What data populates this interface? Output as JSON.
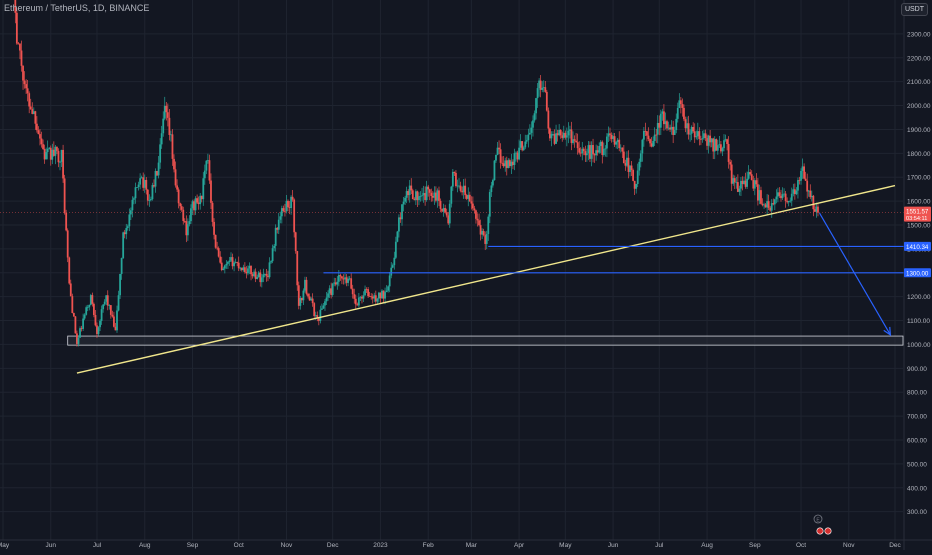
{
  "header": {
    "symbol_title": "Ethereum / TetherUS, 1D, BINANCE",
    "currency": "USDT"
  },
  "colors": {
    "background": "#131722",
    "up_candle": "#26a69a",
    "down_candle": "#ef5350",
    "trendline": "#f0e68c",
    "support_line": "#2962ff",
    "zone_fill": "#2a2e39",
    "zone_border": "#d1d4dc",
    "axis_text": "#b2b5be"
  },
  "chart_data": {
    "type": "candlestick",
    "title": "Ethereum / TetherUS, 1D, BINANCE",
    "y_axis": {
      "unit": "USDT",
      "ylim": [
        265,
        2400
      ],
      "ticks": [
        300,
        400,
        500,
        600,
        700,
        800,
        900,
        1000,
        1100,
        1200,
        1300,
        1400,
        1500,
        1600,
        1700,
        1800,
        1900,
        2000,
        2100,
        2200,
        2300
      ],
      "tick_labels": [
        "300.00",
        "400.00",
        "500.00",
        "600.00",
        "700.00",
        "800.00",
        "900.00",
        "1000.00",
        "1100.00",
        "1200.00",
        "1300.00",
        "1400.00",
        "1500.00",
        "1600.00",
        "1700.00",
        "1800.00",
        "1900.00",
        "2000.00",
        "2100.00",
        "2200.00",
        "2300.00"
      ]
    },
    "x_axis": {
      "ticks": [
        {
          "label": "May",
          "date": "2022-05-01"
        },
        {
          "label": "Jun",
          "date": "2022-06-01"
        },
        {
          "label": "Jul",
          "date": "2022-07-01"
        },
        {
          "label": "Aug",
          "date": "2022-08-01"
        },
        {
          "label": "Sep",
          "date": "2022-09-01"
        },
        {
          "label": "Oct",
          "date": "2022-10-01"
        },
        {
          "label": "Nov",
          "date": "2022-11-01"
        },
        {
          "label": "Dec",
          "date": "2022-12-01"
        },
        {
          "label": "2023",
          "date": "2023-01-01"
        },
        {
          "label": "Feb",
          "date": "2023-02-01"
        },
        {
          "label": "Mar",
          "date": "2023-03-01"
        },
        {
          "label": "Apr",
          "date": "2023-04-01"
        },
        {
          "label": "May",
          "date": "2023-05-01"
        },
        {
          "label": "Jun",
          "date": "2023-06-01"
        },
        {
          "label": "Jul",
          "date": "2023-07-01"
        },
        {
          "label": "Aug",
          "date": "2023-08-01"
        },
        {
          "label": "Sep",
          "date": "2023-09-01"
        },
        {
          "label": "Oct",
          "date": "2023-10-01"
        },
        {
          "label": "Nov",
          "date": "2023-11-01"
        },
        {
          "label": "Dec",
          "date": "2023-12-01"
        }
      ]
    },
    "price_path": [
      [
        "2022-05-05",
        2900
      ],
      [
        "2022-05-10",
        2300
      ],
      [
        "2022-05-16",
        2050
      ],
      [
        "2022-05-22",
        1950
      ],
      [
        "2022-05-28",
        1790
      ],
      [
        "2022-06-03",
        1800
      ],
      [
        "2022-06-08",
        1790
      ],
      [
        "2022-06-13",
        1250
      ],
      [
        "2022-06-18",
        1000
      ],
      [
        "2022-06-22",
        1100
      ],
      [
        "2022-06-27",
        1200
      ],
      [
        "2022-07-01",
        1060
      ],
      [
        "2022-07-07",
        1200
      ],
      [
        "2022-07-13",
        1050
      ],
      [
        "2022-07-18",
        1450
      ],
      [
        "2022-07-25",
        1600
      ],
      [
        "2022-07-29",
        1720
      ],
      [
        "2022-08-04",
        1600
      ],
      [
        "2022-08-10",
        1750
      ],
      [
        "2022-08-14",
        1980
      ],
      [
        "2022-08-18",
        1850
      ],
      [
        "2022-08-22",
        1620
      ],
      [
        "2022-08-28",
        1480
      ],
      [
        "2022-09-01",
        1580
      ],
      [
        "2022-09-06",
        1600
      ],
      [
        "2022-09-11",
        1780
      ],
      [
        "2022-09-15",
        1450
      ],
      [
        "2022-09-20",
        1300
      ],
      [
        "2022-09-27",
        1350
      ],
      [
        "2022-10-04",
        1320
      ],
      [
        "2022-10-10",
        1300
      ],
      [
        "2022-10-15",
        1280
      ],
      [
        "2022-10-20",
        1300
      ],
      [
        "2022-10-26",
        1500
      ],
      [
        "2022-10-31",
        1580
      ],
      [
        "2022-11-05",
        1600
      ],
      [
        "2022-11-09",
        1150
      ],
      [
        "2022-11-13",
        1250
      ],
      [
        "2022-11-21",
        1100
      ],
      [
        "2022-11-27",
        1200
      ],
      [
        "2022-12-05",
        1270
      ],
      [
        "2022-12-12",
        1260
      ],
      [
        "2022-12-16",
        1170
      ],
      [
        "2022-12-22",
        1220
      ],
      [
        "2022-12-28",
        1190
      ],
      [
        "2023-01-03",
        1210
      ],
      [
        "2023-01-08",
        1300
      ],
      [
        "2023-01-14",
        1550
      ],
      [
        "2023-01-20",
        1650
      ],
      [
        "2023-01-27",
        1600
      ],
      [
        "2023-02-02",
        1650
      ],
      [
        "2023-02-07",
        1620
      ],
      [
        "2023-02-14",
        1520
      ],
      [
        "2023-02-17",
        1700
      ],
      [
        "2023-02-24",
        1640
      ],
      [
        "2023-03-03",
        1560
      ],
      [
        "2023-03-10",
        1420
      ],
      [
        "2023-03-14",
        1680
      ],
      [
        "2023-03-18",
        1800
      ],
      [
        "2023-03-24",
        1750
      ],
      [
        "2023-03-30",
        1790
      ],
      [
        "2023-04-05",
        1860
      ],
      [
        "2023-04-10",
        1920
      ],
      [
        "2023-04-14",
        2100
      ],
      [
        "2023-04-18",
        2080
      ],
      [
        "2023-04-21",
        1850
      ],
      [
        "2023-04-28",
        1900
      ],
      [
        "2023-05-04",
        1880
      ],
      [
        "2023-05-10",
        1830
      ],
      [
        "2023-05-14",
        1800
      ],
      [
        "2023-05-20",
        1810
      ],
      [
        "2023-05-27",
        1830
      ],
      [
        "2023-05-31",
        1880
      ],
      [
        "2023-06-05",
        1830
      ],
      [
        "2023-06-12",
        1730
      ],
      [
        "2023-06-16",
        1650
      ],
      [
        "2023-06-21",
        1900
      ],
      [
        "2023-06-26",
        1850
      ],
      [
        "2023-07-03",
        1950
      ],
      [
        "2023-07-08",
        1870
      ],
      [
        "2023-07-14",
        1990
      ],
      [
        "2023-07-20",
        1890
      ],
      [
        "2023-07-26",
        1870
      ],
      [
        "2023-08-01",
        1850
      ],
      [
        "2023-08-08",
        1830
      ],
      [
        "2023-08-14",
        1840
      ],
      [
        "2023-08-17",
        1680
      ],
      [
        "2023-08-22",
        1660
      ],
      [
        "2023-08-29",
        1710
      ],
      [
        "2023-09-03",
        1630
      ],
      [
        "2023-09-11",
        1560
      ],
      [
        "2023-09-18",
        1640
      ],
      [
        "2023-09-24",
        1590
      ],
      [
        "2023-09-29",
        1670
      ],
      [
        "2023-10-02",
        1720
      ],
      [
        "2023-10-06",
        1630
      ],
      [
        "2023-10-09",
        1580
      ],
      [
        "2023-10-12",
        1551.57
      ]
    ],
    "trendline": {
      "from": [
        "2022-06-18",
        880
      ],
      "to": [
        "2023-12-01",
        1665
      ]
    },
    "support_zone": {
      "from": "2022-06-12",
      "to": "2023-12-01",
      "ylow": 997,
      "yhigh": 1035
    },
    "levels": [
      {
        "price": 1410.34,
        "label": "1410.34",
        "from": "2023-03-12",
        "to": "2023-12-01"
      },
      {
        "price": 1300.0,
        "label": "1300.00",
        "from": "2022-11-25",
        "to": "2023-12-01"
      }
    ],
    "projection": {
      "from": [
        "2023-10-13",
        1550
      ],
      "to": [
        "2023-11-28",
        1040
      ]
    },
    "current_price": {
      "value": 1551.57,
      "label": "1551.57",
      "countdown": "03:54:11"
    }
  }
}
